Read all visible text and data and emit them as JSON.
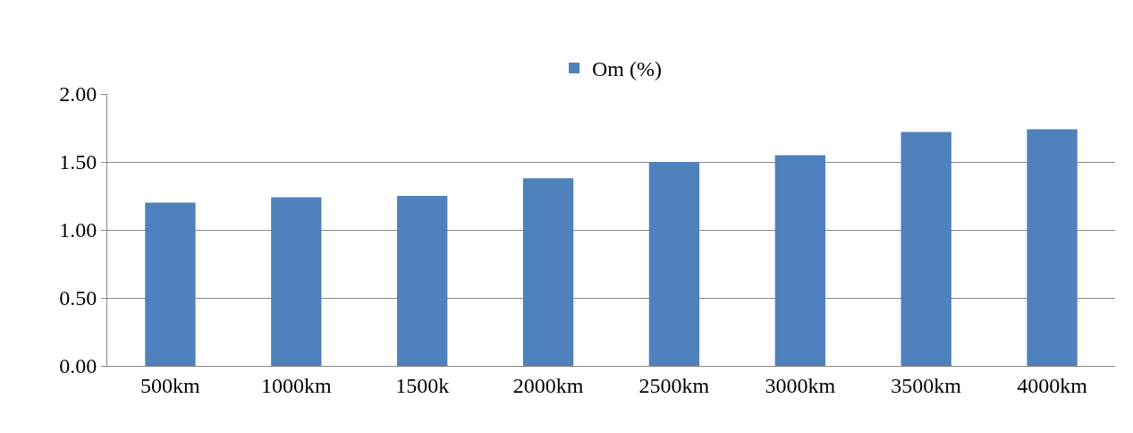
{
  "chart_data": {
    "type": "bar",
    "categories": [
      "500km",
      "1000km",
      "1500k",
      "2000km",
      "2500km",
      "3000km",
      "3500km",
      "4000km"
    ],
    "series": [
      {
        "name": "Om (%)",
        "color": "#4f81bd",
        "values": [
          1.2,
          1.24,
          1.25,
          1.38,
          1.5,
          1.55,
          1.72,
          1.74
        ]
      }
    ],
    "ylim": [
      0,
      2
    ],
    "yticks": [
      {
        "value": 0,
        "label": "0.00"
      },
      {
        "value": 0.5,
        "label": "0.50"
      },
      {
        "value": 1,
        "label": "1.00"
      },
      {
        "value": 1.5,
        "label": "1.50"
      },
      {
        "value": 2,
        "label": "2.00"
      }
    ],
    "grid": "y",
    "legend": "top"
  }
}
